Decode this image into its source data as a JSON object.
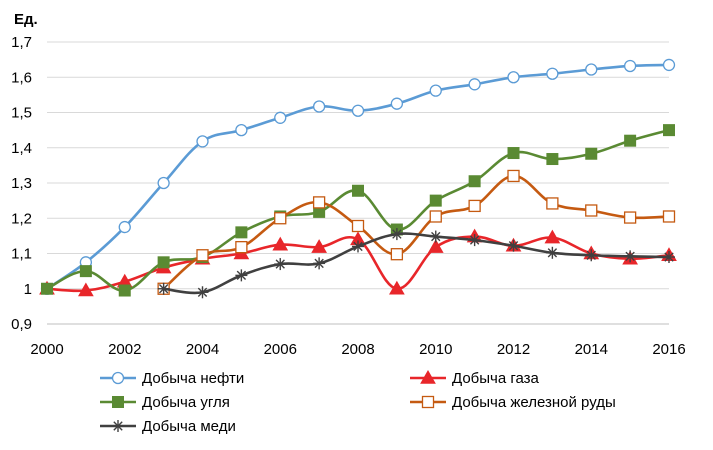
{
  "chart_data": {
    "type": "line",
    "title": "",
    "unit_label": "Ед.",
    "xlabel": "",
    "ylabel": "",
    "x": [
      2000,
      2001,
      2002,
      2003,
      2004,
      2005,
      2006,
      2007,
      2008,
      2009,
      2010,
      2011,
      2012,
      2013,
      2014,
      2015,
      2016
    ],
    "x_tick_labels": [
      "2000",
      "2002",
      "2004",
      "2006",
      "2008",
      "2010",
      "2012",
      "2014",
      "2016"
    ],
    "y_tick_labels": [
      "0,9",
      "1",
      "1,1",
      "1,2",
      "1,3",
      "1,4",
      "1,5",
      "1,6",
      "1,7"
    ],
    "xlim": [
      2000,
      2016
    ],
    "ylim": [
      0.9,
      1.7
    ],
    "grid": "horizontal",
    "legend_position": "bottom",
    "series": [
      {
        "name": "Добыча нефти",
        "color": "#5b9bd5",
        "marker": "circle-open",
        "x": [
          2000,
          2001,
          2002,
          2003,
          2004,
          2005,
          2006,
          2007,
          2008,
          2009,
          2010,
          2011,
          2012,
          2013,
          2014,
          2015,
          2016
        ],
        "values": [
          1.0,
          1.075,
          1.175,
          1.3,
          1.418,
          1.45,
          1.485,
          1.517,
          1.505,
          1.525,
          1.562,
          1.58,
          1.6,
          1.61,
          1.622,
          1.632,
          1.635
        ]
      },
      {
        "name": "Добыча газа",
        "color": "#e8262a",
        "marker": "triangle",
        "x": [
          2000,
          2001,
          2002,
          2003,
          2004,
          2005,
          2006,
          2007,
          2008,
          2009,
          2010,
          2011,
          2012,
          2013,
          2014,
          2015,
          2016
        ],
        "values": [
          1.0,
          0.995,
          1.02,
          1.06,
          1.085,
          1.1,
          1.125,
          1.118,
          1.14,
          1.0,
          1.118,
          1.148,
          1.122,
          1.145,
          1.1,
          1.085,
          1.095
        ]
      },
      {
        "name": "Добыча угля",
        "color": "#5a8a33",
        "marker": "square",
        "x": [
          2000,
          2001,
          2002,
          2003,
          2004,
          2005,
          2006,
          2007,
          2008,
          2009,
          2010,
          2011,
          2012,
          2013,
          2014,
          2015,
          2016
        ],
        "values": [
          1.0,
          1.05,
          0.995,
          1.075,
          1.09,
          1.16,
          1.205,
          1.218,
          1.278,
          1.168,
          1.25,
          1.305,
          1.385,
          1.368,
          1.383,
          1.42,
          1.45
        ]
      },
      {
        "name": "Добыча железной руды",
        "color": "#c55a11",
        "marker": "square-open",
        "x": [
          2003,
          2004,
          2005,
          2006,
          2007,
          2008,
          2009,
          2010,
          2011,
          2012,
          2013,
          2014,
          2015,
          2016
        ],
        "values": [
          1.0,
          1.095,
          1.118,
          1.2,
          1.245,
          1.178,
          1.098,
          1.205,
          1.235,
          1.32,
          1.242,
          1.222,
          1.202,
          1.205
        ]
      },
      {
        "name": "Добыча меди",
        "color": "#404040",
        "marker": "asterisk",
        "x": [
          2003,
          2004,
          2005,
          2006,
          2007,
          2008,
          2009,
          2010,
          2011,
          2012,
          2013,
          2014,
          2015,
          2016
        ],
        "values": [
          1.0,
          0.99,
          1.038,
          1.07,
          1.072,
          1.12,
          1.155,
          1.148,
          1.138,
          1.122,
          1.102,
          1.095,
          1.092,
          1.09
        ]
      }
    ]
  }
}
